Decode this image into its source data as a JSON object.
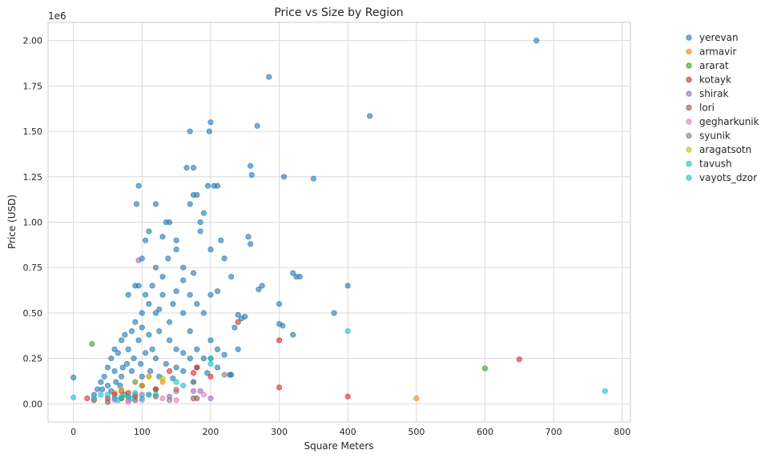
{
  "chart_data": {
    "type": "scatter",
    "title": "Price vs Size by Region",
    "xlabel": "Square Meters",
    "ylabel": "Price (USD)",
    "y_offset_label": "1e6",
    "xlim": [
      -37,
      812
    ],
    "ylim": [
      -0.1,
      2.1
    ],
    "xticks": [
      0,
      100,
      200,
      300,
      400,
      500,
      600,
      700,
      800
    ],
    "xtick_labels": [
      "0",
      "100",
      "200",
      "300",
      "400",
      "500",
      "600",
      "700",
      "800"
    ],
    "yticks": [
      0,
      0.25,
      0.5,
      0.75,
      1.0,
      1.25,
      1.5,
      1.75,
      2.0
    ],
    "ytick_labels": [
      "0.00",
      "0.25",
      "0.50",
      "0.75",
      "1.00",
      "1.25",
      "1.50",
      "1.75",
      "2.00"
    ],
    "grid": true,
    "legend_position": "outside-right-top",
    "y_units": "millions USD",
    "series": [
      {
        "name": "yerevan",
        "color": "#1f77b4",
        "points": [
          [
            675,
            2.0
          ],
          [
            285,
            1.8
          ],
          [
            432,
            1.585
          ],
          [
            268,
            1.53
          ],
          [
            350,
            1.24
          ],
          [
            307,
            1.25
          ],
          [
            258,
            1.31
          ],
          [
            260,
            1.26
          ],
          [
            200,
            1.55
          ],
          [
            198,
            1.5
          ],
          [
            170,
            1.5
          ],
          [
            175,
            1.3
          ],
          [
            165,
            1.3
          ],
          [
            95,
            1.2
          ],
          [
            92,
            1.1
          ],
          [
            196,
            1.2
          ],
          [
            205,
            1.2
          ],
          [
            210,
            1.2
          ],
          [
            180,
            1.15
          ],
          [
            175,
            1.15
          ],
          [
            400,
            0.65
          ],
          [
            380,
            0.5
          ],
          [
            320,
            0.72
          ],
          [
            325,
            0.7
          ],
          [
            330,
            0.7
          ],
          [
            275,
            0.65
          ],
          [
            270,
            0.63
          ],
          [
            300,
            0.55
          ],
          [
            300,
            0.44
          ],
          [
            305,
            0.43
          ],
          [
            320,
            0.38
          ],
          [
            255,
            0.92
          ],
          [
            258,
            0.88
          ],
          [
            240,
            0.49
          ],
          [
            245,
            0.47
          ],
          [
            250,
            0.48
          ],
          [
            235,
            0.42
          ],
          [
            228,
            0.16
          ],
          [
            230,
            0.16
          ],
          [
            190,
            1.05
          ],
          [
            185,
            1.0
          ],
          [
            170,
            1.1
          ],
          [
            135,
            1.0
          ],
          [
            140,
            1.0
          ],
          [
            130,
            0.92
          ],
          [
            120,
            1.1
          ],
          [
            105,
            0.9
          ],
          [
            100,
            0.8
          ],
          [
            90,
            0.65
          ],
          [
            80,
            0.6
          ],
          [
            95,
            0.65
          ],
          [
            150,
            0.85
          ],
          [
            160,
            0.75
          ],
          [
            175,
            0.72
          ],
          [
            185,
            0.95
          ],
          [
            200,
            0.85
          ],
          [
            215,
            0.9
          ],
          [
            220,
            0.8
          ],
          [
            230,
            0.7
          ],
          [
            200,
            0.6
          ],
          [
            210,
            0.62
          ],
          [
            190,
            0.5
          ],
          [
            180,
            0.55
          ],
          [
            170,
            0.4
          ],
          [
            160,
            0.5
          ],
          [
            140,
            0.45
          ],
          [
            120,
            0.5
          ],
          [
            130,
            0.6
          ],
          [
            110,
            0.55
          ],
          [
            100,
            0.5
          ],
          [
            90,
            0.45
          ],
          [
            85,
            0.4
          ],
          [
            75,
            0.38
          ],
          [
            70,
            0.35
          ],
          [
            60,
            0.3
          ],
          [
            55,
            0.25
          ],
          [
            50,
            0.2
          ],
          [
            45,
            0.15
          ],
          [
            40,
            0.12
          ],
          [
            35,
            0.08
          ],
          [
            30,
            0.05
          ],
          [
            0,
            0.145
          ],
          [
            65,
            0.28
          ],
          [
            80,
            0.3
          ],
          [
            95,
            0.35
          ],
          [
            110,
            0.38
          ],
          [
            125,
            0.4
          ],
          [
            140,
            0.35
          ],
          [
            150,
            0.3
          ],
          [
            160,
            0.28
          ],
          [
            170,
            0.25
          ],
          [
            180,
            0.3
          ],
          [
            200,
            0.35
          ],
          [
            210,
            0.3
          ],
          [
            190,
            0.25
          ],
          [
            105,
            0.28
          ],
          [
            115,
            0.3
          ],
          [
            88,
            0.25
          ],
          [
            72,
            0.2
          ],
          [
            60,
            0.18
          ],
          [
            78,
            0.22
          ],
          [
            98,
            0.22
          ],
          [
            120,
            0.25
          ],
          [
            135,
            0.22
          ],
          [
            150,
            0.2
          ],
          [
            62,
            0.12
          ],
          [
            70,
            0.15
          ],
          [
            85,
            0.18
          ],
          [
            100,
            0.15
          ],
          [
            50,
            0.1
          ],
          [
            42,
            0.08
          ],
          [
            55,
            0.07
          ],
          [
            68,
            0.1
          ],
          [
            90,
            0.12
          ],
          [
            112,
            0.18
          ],
          [
            125,
            0.15
          ],
          [
            145,
            0.14
          ],
          [
            160,
            0.18
          ],
          [
            175,
            0.12
          ],
          [
            195,
            0.17
          ],
          [
            210,
            0.2
          ],
          [
            220,
            0.27
          ],
          [
            240,
            0.3
          ],
          [
            180,
            0.2
          ],
          [
            130,
            0.7
          ],
          [
            115,
            0.65
          ],
          [
            150,
            0.62
          ],
          [
            160,
            0.68
          ],
          [
            145,
            0.55
          ],
          [
            125,
            0.52
          ],
          [
            170,
            0.6
          ],
          [
            100,
            0.42
          ],
          [
            105,
            0.6
          ],
          [
            120,
            0.75
          ],
          [
            138,
            0.8
          ],
          [
            150,
            0.9
          ],
          [
            110,
            0.95
          ]
        ]
      },
      {
        "name": "armavir",
        "color": "#ff7f0e",
        "points": [
          [
            500,
            0.03
          ],
          [
            150,
            0.08
          ],
          [
            110,
            0.15
          ],
          [
            90,
            0.05
          ],
          [
            70,
            0.03
          ],
          [
            130,
            0.12
          ],
          [
            60,
            0.06
          ]
        ]
      },
      {
        "name": "ararat",
        "color": "#2ca02c",
        "points": [
          [
            600,
            0.195
          ],
          [
            27,
            0.33
          ],
          [
            200,
            0.25
          ],
          [
            100,
            0.1
          ],
          [
            75,
            0.05
          ],
          [
            120,
            0.08
          ]
        ]
      },
      {
        "name": "kotayk",
        "color": "#d62728",
        "points": [
          [
            650,
            0.245
          ],
          [
            300,
            0.35
          ],
          [
            300,
            0.09
          ],
          [
            400,
            0.04
          ],
          [
            240,
            0.45
          ],
          [
            180,
            0.2
          ],
          [
            140,
            0.18
          ],
          [
            60,
            0.05
          ],
          [
            50,
            0.03
          ],
          [
            30,
            0.02
          ],
          [
            80,
            0.06
          ],
          [
            100,
            0.1
          ],
          [
            120,
            0.08
          ],
          [
            20,
            0.03
          ],
          [
            90,
            0.04
          ],
          [
            175,
            0.17
          ],
          [
            200,
            0.15
          ],
          [
            70,
            0.07
          ]
        ]
      },
      {
        "name": "shirak",
        "color": "#9467bd",
        "points": [
          [
            95,
            0.79
          ],
          [
            200,
            0.03
          ],
          [
            185,
            0.07
          ],
          [
            175,
            0.07
          ],
          [
            150,
            0.07
          ],
          [
            140,
            0.04
          ],
          [
            100,
            0.05
          ],
          [
            80,
            0.02
          ],
          [
            60,
            0.03
          ]
        ]
      },
      {
        "name": "lori",
        "color": "#8c564b",
        "points": [
          [
            180,
            0.03
          ],
          [
            175,
            0.03
          ],
          [
            120,
            0.04
          ],
          [
            90,
            0.02
          ],
          [
            70,
            0.03
          ],
          [
            50,
            0.01
          ]
        ]
      },
      {
        "name": "gegharkunik",
        "color": "#e377c2",
        "points": [
          [
            150,
            0.02
          ],
          [
            190,
            0.05
          ],
          [
            130,
            0.03
          ],
          [
            80,
            0.01
          ],
          [
            60,
            0.02
          ],
          [
            100,
            0.02
          ]
        ]
      },
      {
        "name": "syunik",
        "color": "#7f7f7f",
        "points": [
          [
            220,
            0.16
          ],
          [
            175,
            0.12
          ],
          [
            140,
            0.02
          ],
          [
            110,
            0.05
          ],
          [
            80,
            0.04
          ]
        ]
      },
      {
        "name": "aragatsotn",
        "color": "#bcbd22",
        "points": [
          [
            110,
            0.15
          ],
          [
            130,
            0.14
          ],
          [
            90,
            0.12
          ],
          [
            70,
            0.08
          ],
          [
            100,
            0.1
          ]
        ]
      },
      {
        "name": "tavush",
        "color": "#17becf",
        "points": [
          [
            775,
            0.07
          ],
          [
            200,
            0.22
          ],
          [
            150,
            0.12
          ],
          [
            60,
            0.03
          ],
          [
            40,
            0.05
          ],
          [
            80,
            0.04
          ],
          [
            100,
            0.03
          ],
          [
            120,
            0.05
          ]
        ]
      },
      {
        "name": "vayots_dzor",
        "color": "#17becf",
        "points": [
          [
            400,
            0.4
          ],
          [
            0,
            0.035
          ],
          [
            200,
            0.25
          ],
          [
            160,
            0.1
          ],
          [
            50,
            0.05
          ],
          [
            70,
            0.04
          ],
          [
            90,
            0.06
          ],
          [
            30,
            0.03
          ],
          [
            110,
            0.05
          ],
          [
            65,
            0.02
          ],
          [
            85,
            0.03
          ]
        ]
      }
    ]
  }
}
